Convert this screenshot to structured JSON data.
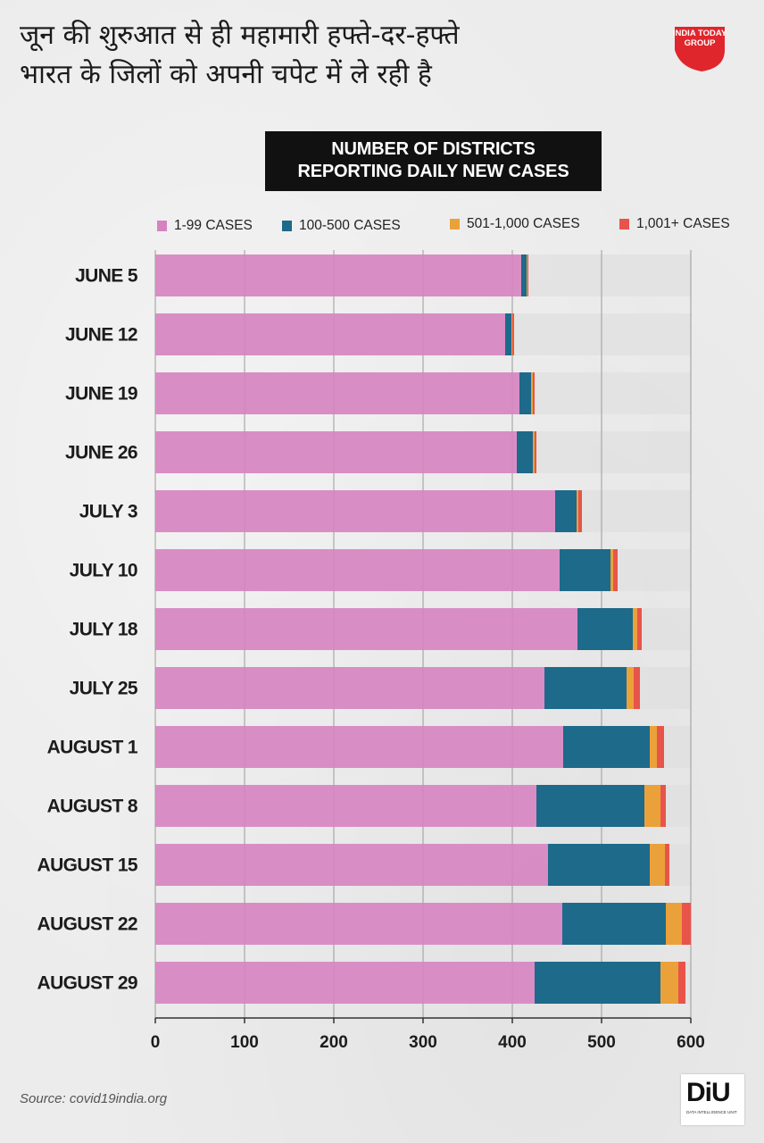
{
  "headline": {
    "line1": "जून की शुरुआत से ही महामारी हफ्ते-दर-हफ्ते",
    "line2": "भारत के जिलों को अपनी चपेट में ले रही है"
  },
  "logo": {
    "brand": "INDIA TODAY GROUP",
    "color": "#e0262d"
  },
  "banner": {
    "line1": "NUMBER OF DISTRICTS",
    "line2": "REPORTING DAILY  NEW CASES"
  },
  "legend": [
    {
      "label": "1-99 CASES",
      "color": "#d682c0"
    },
    {
      "label": "100-500 CASES",
      "color": "#1d6a8a"
    },
    {
      "label": "501-1,000 CASES",
      "color": "#eba13a"
    },
    {
      "label": "1,001+ CASES",
      "color": "#e8544a"
    }
  ],
  "chart_data": {
    "type": "bar",
    "orientation": "horizontal",
    "stacked": true,
    "title": "NUMBER OF DISTRICTS REPORTING DAILY  NEW CASES",
    "categories": [
      "JUNE 5",
      "JUNE 12",
      "JUNE 19",
      "JUNE 26",
      "JULY 3",
      "JULY 10",
      "JULY 18",
      "JULY 25",
      "AUGUST 1",
      "AUGUST 8",
      "AUGUST 15",
      "AUGUST 22",
      "AUGUST 29"
    ],
    "series": [
      {
        "name": "1-99 CASES",
        "color": "#d682c0",
        "values": [
          410,
          392,
          408,
          405,
          448,
          453,
          473,
          436,
          457,
          427,
          440,
          456,
          425
        ]
      },
      {
        "name": "100-500 CASES",
        "color": "#1d6a8a",
        "values": [
          6,
          7,
          13,
          18,
          24,
          57,
          62,
          92,
          97,
          121,
          114,
          116,
          141
        ]
      },
      {
        "name": "501-1,000 CASES",
        "color": "#eba13a",
        "values": [
          1,
          1,
          2,
          2,
          2,
          3,
          5,
          8,
          8,
          18,
          17,
          18,
          20
        ]
      },
      {
        "name": "1,001+ CASES",
        "color": "#e8544a",
        "values": [
          1,
          2,
          2,
          2,
          4,
          5,
          5,
          7,
          8,
          6,
          5,
          10,
          8
        ]
      }
    ],
    "xlabel": "",
    "ylabel": "",
    "xlim": [
      0,
      600
    ],
    "xticks": [
      "0",
      "100",
      "200",
      "300",
      "400",
      "500",
      "600"
    ],
    "grid": true,
    "legend_position": "top"
  },
  "source": "Source: covid19india.org",
  "diu": {
    "text": "DiU",
    "subtext": "DATA INTELLIGENCE UNIT"
  }
}
